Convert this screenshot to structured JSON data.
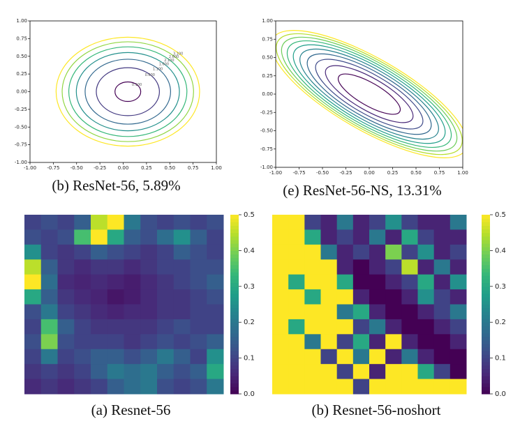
{
  "chart_data": [
    {
      "type": "contour",
      "caption": "(b) ResNet-56, 5.89%",
      "colormap": "viridis",
      "xlim": [
        -1,
        1
      ],
      "ylim": [
        -1,
        1
      ],
      "xticks": [
        {
          "value": -1,
          "label": "-1.00"
        },
        {
          "value": -0.75,
          "label": "-0.75"
        },
        {
          "value": -0.5,
          "label": "-0.50"
        },
        {
          "value": -0.25,
          "label": "-0.25"
        },
        {
          "value": 0,
          "label": "0.00"
        },
        {
          "value": 0.25,
          "label": "0.25"
        },
        {
          "value": 0.5,
          "label": "0.50"
        },
        {
          "value": 0.75,
          "label": "0.75"
        },
        {
          "value": 1,
          "label": "1.00"
        }
      ],
      "yticks": [
        {
          "value": -1,
          "label": "-1.00"
        },
        {
          "value": -0.75,
          "label": "-0.75"
        },
        {
          "value": -0.5,
          "label": "-0.50"
        },
        {
          "value": -0.25,
          "label": "-0.25"
        },
        {
          "value": 0,
          "label": "0.00"
        },
        {
          "value": 0.25,
          "label": "0.25"
        },
        {
          "value": 0.5,
          "label": "0.50"
        },
        {
          "value": 0.75,
          "label": "0.75"
        },
        {
          "value": 1,
          "label": "1.00"
        }
      ],
      "levels": [
        {
          "value": 0.1,
          "label": "0.100"
        },
        {
          "value": 0.6,
          "label": "0.600"
        },
        {
          "value": 1.1,
          "label": "1.100"
        },
        {
          "value": 1.6,
          "label": "1.600"
        },
        {
          "value": 2.1,
          "label": "2.100"
        },
        {
          "value": 2.6,
          "label": "2.600"
        },
        {
          "value": 3.1,
          "label": "3.100"
        }
      ]
    },
    {
      "type": "contour",
      "caption": "(e) ResNet-56-NS, 13.31%",
      "colormap": "viridis",
      "xlim": [
        -1,
        1
      ],
      "ylim": [
        -1,
        1
      ],
      "xticks": [
        {
          "value": -1,
          "label": "-1.00"
        },
        {
          "value": -0.75,
          "label": "-0.75"
        },
        {
          "value": -0.5,
          "label": "-0.50"
        },
        {
          "value": -0.25,
          "label": "-0.25"
        },
        {
          "value": 0,
          "label": "0.00"
        },
        {
          "value": 0.25,
          "label": "0.25"
        },
        {
          "value": 0.5,
          "label": "0.50"
        },
        {
          "value": 0.75,
          "label": "0.75"
        },
        {
          "value": 1,
          "label": "1.00"
        }
      ],
      "yticks": [
        {
          "value": -1,
          "label": "-1.00"
        },
        {
          "value": -0.75,
          "label": "-0.75"
        },
        {
          "value": -0.5,
          "label": "-0.50"
        },
        {
          "value": -0.25,
          "label": "-0.25"
        },
        {
          "value": 0,
          "label": "0.00"
        },
        {
          "value": 0.25,
          "label": "0.25"
        },
        {
          "value": 0.5,
          "label": "0.50"
        },
        {
          "value": 0.75,
          "label": "0.75"
        },
        {
          "value": 1,
          "label": "1.00"
        }
      ],
      "levels": [
        0.5,
        1,
        1.5,
        2,
        2.5,
        3,
        3.5,
        4,
        4.5,
        5
      ]
    },
    {
      "type": "heatmap",
      "caption": "(a) Resnet-56",
      "colormap": "viridis",
      "ylim": [
        0,
        0.5
      ],
      "yticks": [
        {
          "value": 0,
          "label": "0.0"
        },
        0.1,
        0.2,
        0.3,
        0.4,
        0.5
      ],
      "values": [
        [
          0.1,
          0.12,
          0.1,
          0.15,
          0.45,
          0.5,
          0.2,
          0.12,
          0.1,
          0.12,
          0.1,
          0.12
        ],
        [
          0.12,
          0.1,
          0.12,
          0.35,
          0.5,
          0.3,
          0.15,
          0.12,
          0.18,
          0.25,
          0.15,
          0.1
        ],
        [
          0.25,
          0.1,
          0.08,
          0.1,
          0.15,
          0.12,
          0.1,
          0.08,
          0.1,
          0.15,
          0.12,
          0.1
        ],
        [
          0.45,
          0.15,
          0.08,
          0.06,
          0.08,
          0.08,
          0.06,
          0.08,
          0.1,
          0.1,
          0.12,
          0.12
        ],
        [
          0.5,
          0.18,
          0.06,
          0.05,
          0.06,
          0.05,
          0.04,
          0.06,
          0.08,
          0.1,
          0.12,
          0.15
        ],
        [
          0.3,
          0.15,
          0.08,
          0.06,
          0.05,
          0.03,
          0.04,
          0.06,
          0.08,
          0.08,
          0.1,
          0.12
        ],
        [
          0.12,
          0.2,
          0.1,
          0.08,
          0.06,
          0.05,
          0.06,
          0.06,
          0.08,
          0.08,
          0.1,
          0.1
        ],
        [
          0.1,
          0.35,
          0.15,
          0.1,
          0.08,
          0.08,
          0.08,
          0.08,
          0.1,
          0.12,
          0.1,
          0.1
        ],
        [
          0.12,
          0.4,
          0.12,
          0.1,
          0.1,
          0.1,
          0.08,
          0.1,
          0.12,
          0.1,
          0.12,
          0.15
        ],
        [
          0.1,
          0.2,
          0.1,
          0.12,
          0.15,
          0.15,
          0.12,
          0.15,
          0.2,
          0.15,
          0.1,
          0.25
        ],
        [
          0.08,
          0.1,
          0.08,
          0.1,
          0.15,
          0.2,
          0.18,
          0.2,
          0.15,
          0.12,
          0.15,
          0.3
        ],
        [
          0.06,
          0.08,
          0.06,
          0.08,
          0.1,
          0.15,
          0.18,
          0.2,
          0.12,
          0.1,
          0.12,
          0.2
        ]
      ]
    },
    {
      "type": "heatmap",
      "caption": "(b) Resnet-56-noshort",
      "colormap": "viridis",
      "ylim": [
        0,
        0.5
      ],
      "yticks": [
        {
          "value": 0,
          "label": "0.0"
        },
        0.1,
        0.2,
        0.3,
        0.4,
        0.5
      ],
      "values": [
        [
          0.5,
          0.5,
          0.1,
          0.05,
          0.2,
          0.05,
          0.1,
          0.25,
          0.1,
          0.05,
          0.05,
          0.2
        ],
        [
          0.5,
          0.5,
          0.3,
          0.05,
          0.1,
          0.05,
          0.2,
          0.05,
          0.3,
          0.1,
          0.05,
          0.05
        ],
        [
          0.5,
          0.5,
          0.5,
          0.2,
          0.05,
          0.1,
          0.05,
          0.4,
          0.1,
          0.25,
          0.05,
          0.1
        ],
        [
          0.5,
          0.5,
          0.5,
          0.5,
          0.05,
          0.0,
          0.05,
          0.1,
          0.45,
          0.05,
          0.2,
          0.05
        ],
        [
          0.5,
          0.3,
          0.5,
          0.5,
          0.3,
          0.0,
          0.0,
          0.05,
          0.1,
          0.3,
          0.05,
          0.25
        ],
        [
          0.5,
          0.5,
          0.3,
          0.5,
          0.5,
          0.05,
          0.0,
          0.0,
          0.05,
          0.25,
          0.1,
          0.05
        ],
        [
          0.5,
          0.5,
          0.5,
          0.5,
          0.2,
          0.3,
          0.05,
          0.0,
          0.0,
          0.05,
          0.1,
          0.2
        ],
        [
          0.5,
          0.3,
          0.5,
          0.5,
          0.5,
          0.1,
          0.2,
          0.05,
          0.0,
          0.0,
          0.05,
          0.1
        ],
        [
          0.5,
          0.5,
          0.2,
          0.5,
          0.1,
          0.3,
          0.05,
          0.5,
          0.05,
          0.0,
          0.0,
          0.05
        ],
        [
          0.5,
          0.5,
          0.5,
          0.1,
          0.5,
          0.2,
          0.5,
          0.05,
          0.2,
          0.05,
          0.0,
          0.0
        ],
        [
          0.5,
          0.5,
          0.5,
          0.5,
          0.1,
          0.5,
          0.05,
          0.5,
          0.5,
          0.3,
          0.1,
          0.0
        ],
        [
          0.5,
          0.5,
          0.5,
          0.5,
          0.5,
          0.1,
          0.5,
          0.5,
          0.5,
          0.5,
          0.5,
          0.5
        ]
      ]
    }
  ]
}
